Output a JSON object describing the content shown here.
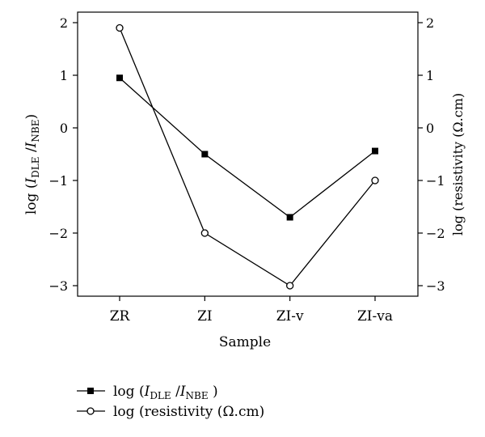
{
  "chart_data": {
    "type": "line",
    "categories": [
      "ZR",
      "ZI",
      "ZI-v",
      "ZI-va"
    ],
    "xlabel": "Sample",
    "ylabel_left": {
      "prefix": "log (",
      "i1": "I",
      "sub1": "DLE",
      "sep": " /",
      "i2": "I",
      "sub2": "NBE",
      "suffix": ")"
    },
    "ylabel_right": "log (resistivity (Ω.cm)",
    "ylim": [
      -3.2,
      2.2
    ],
    "yticks": [
      2,
      1,
      0,
      -1,
      -2,
      -3
    ],
    "ytick_labels": [
      "2",
      "1",
      "0",
      "−1",
      "−2",
      "−3"
    ],
    "grid": false,
    "legend_position": "bottom-left, below plot",
    "series": [
      {
        "key": "dle_nbe",
        "values": [
          0.95,
          -0.5,
          -1.7,
          -0.44
        ],
        "marker": "filled-square",
        "color": "#000000",
        "axis": "left",
        "legend": {
          "prefix": "log (",
          "i1": "I",
          "sub1": "DLE",
          "sep": " /",
          "i2": "I",
          "sub2": "NBE",
          "suffix": " )"
        }
      },
      {
        "key": "resistivity",
        "values": [
          1.9,
          -2.0,
          -3.0,
          -1.0
        ],
        "marker": "open-circle",
        "color": "#000000",
        "axis": "right",
        "legend": {
          "text": "log (resistivity (Ω.cm)"
        }
      }
    ]
  }
}
